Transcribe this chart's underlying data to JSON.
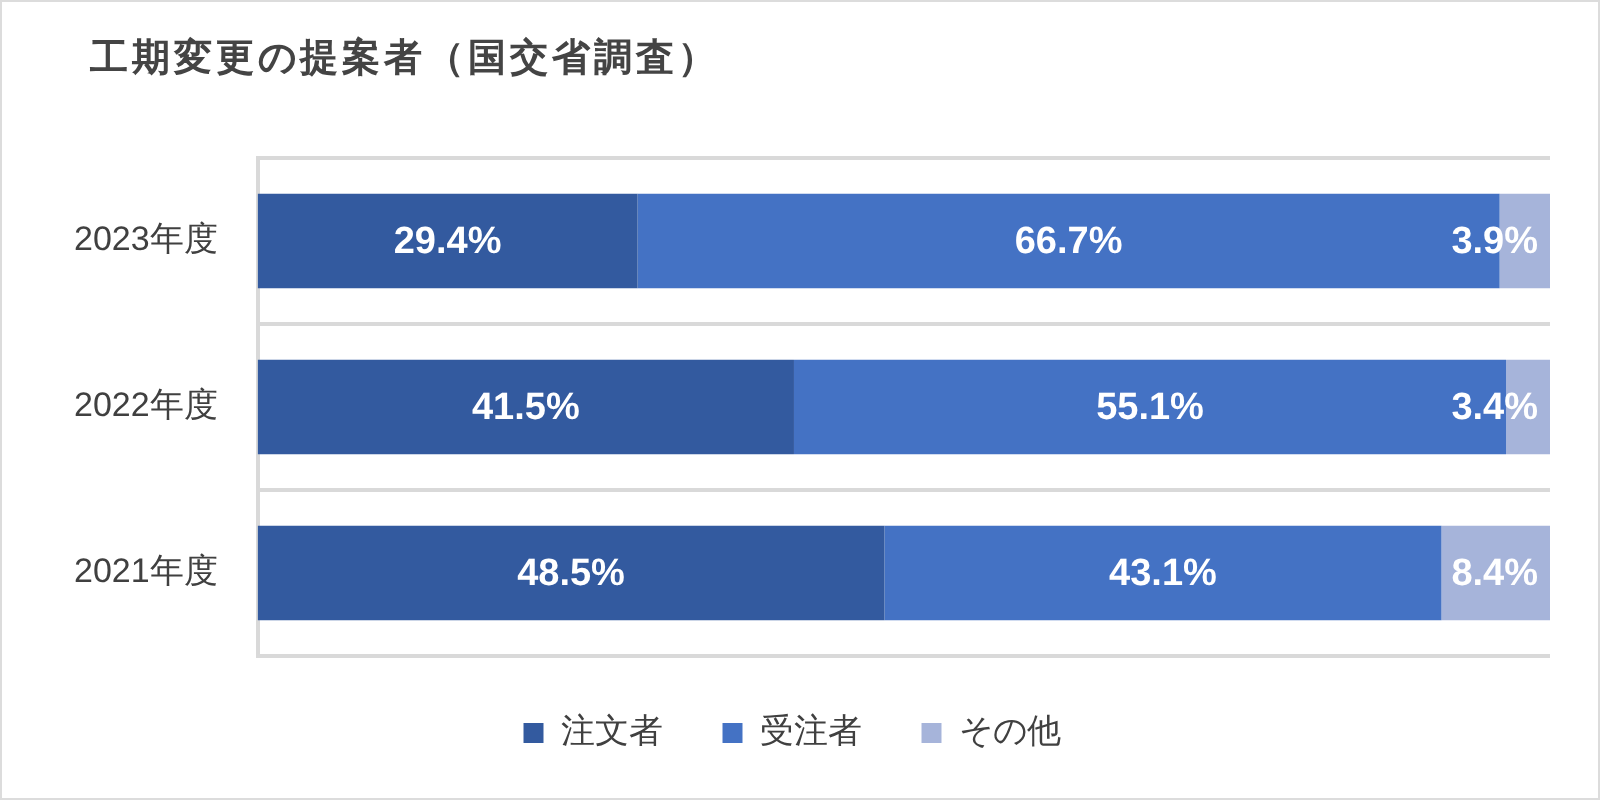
{
  "chart_data": {
    "type": "bar",
    "title": "工期変更の提案者（国交省調査）",
    "orientation": "horizontal",
    "stacked": true,
    "categories": [
      "2023年度",
      "2022年度",
      "2021年度"
    ],
    "series": [
      {
        "name": "注文者",
        "color": "#335a9f",
        "values": [
          29.4,
          41.5,
          48.5
        ],
        "value_labels": [
          "29.4%",
          "41.5%",
          "48.5%"
        ]
      },
      {
        "name": "受注者",
        "color": "#4472c4",
        "values": [
          66.7,
          55.1,
          43.1
        ],
        "value_labels": [
          "66.7%",
          "55.1%",
          "43.1%"
        ]
      },
      {
        "name": "その他",
        "color": "#a6b4da",
        "values": [
          3.9,
          3.4,
          8.4
        ],
        "value_labels": [
          "3.9%",
          "3.4%",
          "8.4%"
        ]
      }
    ],
    "xlim": [
      0,
      100
    ],
    "tick_labels": "y",
    "grid": "y",
    "legend": "bottom"
  }
}
